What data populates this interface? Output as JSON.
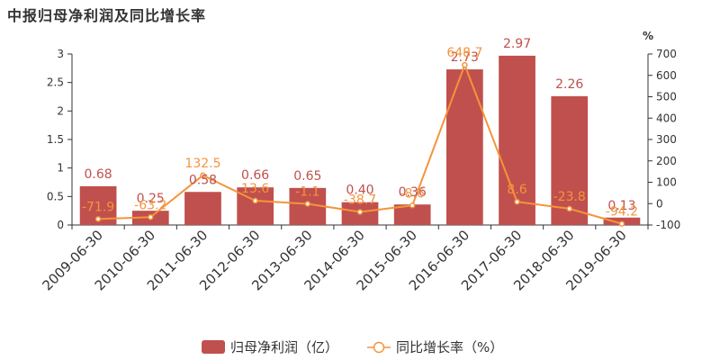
{
  "title": "中报归母净利润及同比增长率",
  "chart_data": {
    "type": "bar",
    "categories": [
      "2009-06-30",
      "2010-06-30",
      "2011-06-30",
      "2012-06-30",
      "2013-06-30",
      "2014-06-30",
      "2015-06-30",
      "2016-06-30",
      "2017-06-30",
      "2018-06-30",
      "2019-06-30"
    ],
    "series": [
      {
        "name": "归母净利润（亿）",
        "type": "bar",
        "axis": "left",
        "color": "#c0504d",
        "values": [
          0.68,
          0.25,
          0.58,
          0.66,
          0.65,
          0.4,
          0.36,
          2.73,
          2.97,
          2.26,
          0.13
        ],
        "labels": [
          "0.68",
          "0.25",
          "0.58",
          "0.66",
          "0.65",
          "0.40",
          "0.36",
          "2.73",
          "2.97",
          "2.26",
          "0.13"
        ]
      },
      {
        "name": "同比增长率（%）",
        "type": "line",
        "axis": "right",
        "color": "#f5943b",
        "values": [
          -71.9,
          -63.2,
          132.5,
          13.6,
          -1.1,
          -38.7,
          -8.6,
          648.7,
          8.6,
          -23.8,
          -94.2
        ],
        "labels": [
          "-71.9",
          "-63.2",
          "132.5",
          "13.6",
          "-1.1",
          "-38.7",
          "-8.6",
          "648.7",
          "8.6",
          "-23.8",
          "-94.2"
        ]
      }
    ],
    "y_left": {
      "ylim": [
        0,
        3
      ],
      "ticks": [
        "0",
        "0.5",
        "1",
        "1.5",
        "2",
        "2.5",
        "3"
      ]
    },
    "y_right": {
      "ylim": [
        -100,
        700
      ],
      "ticks": [
        "-100",
        "0",
        "100",
        "200",
        "300",
        "400",
        "500",
        "600",
        "700"
      ],
      "unit": "%"
    },
    "legend_position": "bottom-center",
    "grid": false
  }
}
